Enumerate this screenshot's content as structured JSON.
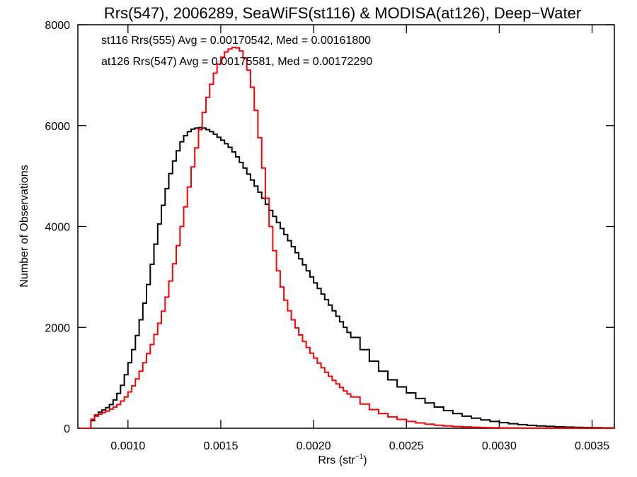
{
  "chart_data": {
    "type": "line",
    "style": "step-histogram",
    "title": "Rrs(547), 2006289, SeaWiFS(st116) & MODISA(at126), Deep−Water",
    "xlabel_main": "Rrs (str",
    "xlabel_sup": "−1",
    "xlabel_close": ")",
    "ylabel": "Number of Observations",
    "xlim": [
      0.00073,
      0.00362
    ],
    "ylim": [
      0,
      8000
    ],
    "x_ticks": [
      {
        "value": 0.001,
        "label": "0.0010"
      },
      {
        "value": 0.0015,
        "label": "0.0015"
      },
      {
        "value": 0.002,
        "label": "0.0020"
      },
      {
        "value": 0.0025,
        "label": "0.0025"
      },
      {
        "value": 0.003,
        "label": "0.0030"
      },
      {
        "value": 0.0035,
        "label": "0.0035"
      }
    ],
    "y_ticks": [
      {
        "value": 0,
        "label": "0"
      },
      {
        "value": 2000,
        "label": "2000"
      },
      {
        "value": 4000,
        "label": "4000"
      },
      {
        "value": 6000,
        "label": "6000"
      },
      {
        "value": 8000,
        "label": "8000"
      }
    ],
    "grid": false,
    "legend": [
      {
        "text": "st116 Rrs(555) Avg = 0.00170542, Med = 0.00161800",
        "color": "#000000"
      },
      {
        "text": "at126 Rrs(547) Avg = 0.00175581, Med = 0.00172290",
        "color": "#ff0000"
      }
    ],
    "legend_position": "top-left",
    "series": [
      {
        "color": "#000000",
        "x": [
          0.00074,
          0.00078,
          0.0008,
          0.00082,
          0.00084,
          0.00086,
          0.00088,
          0.0009,
          0.00092,
          0.00094,
          0.00096,
          0.00098,
          0.001,
          0.00102,
          0.00104,
          0.00106,
          0.00108,
          0.0011,
          0.00112,
          0.00114,
          0.00116,
          0.00118,
          0.0012,
          0.00122,
          0.00124,
          0.00126,
          0.00128,
          0.0013,
          0.00132,
          0.00134,
          0.00136,
          0.00138,
          0.0014,
          0.00142,
          0.00144,
          0.00146,
          0.00148,
          0.0015,
          0.00152,
          0.00154,
          0.00156,
          0.00158,
          0.0016,
          0.00162,
          0.00164,
          0.00166,
          0.00168,
          0.0017,
          0.00172,
          0.00174,
          0.00176,
          0.00178,
          0.0018,
          0.00182,
          0.00184,
          0.00186,
          0.00188,
          0.0019,
          0.00192,
          0.00194,
          0.00196,
          0.00198,
          0.002,
          0.00202,
          0.00204,
          0.00206,
          0.00208,
          0.0021,
          0.00212,
          0.00214,
          0.00216,
          0.00218,
          0.0022,
          0.00225,
          0.0023,
          0.00235,
          0.0024,
          0.00245,
          0.0025,
          0.00255,
          0.0026,
          0.00265,
          0.0027,
          0.00275,
          0.0028,
          0.00285,
          0.0029,
          0.00295,
          0.003,
          0.00305,
          0.0031,
          0.00315,
          0.0032,
          0.00325,
          0.0033,
          0.00335,
          0.0034,
          0.00345,
          0.0035,
          0.00355,
          0.0036,
          0.00362
        ],
        "y": [
          0,
          0,
          150,
          260,
          320,
          360,
          410,
          470,
          560,
          690,
          850,
          1060,
          1300,
          1560,
          1840,
          2150,
          2480,
          2850,
          3250,
          3650,
          4050,
          4420,
          4750,
          5050,
          5300,
          5500,
          5680,
          5800,
          5880,
          5930,
          5950,
          5960,
          5950,
          5920,
          5880,
          5830,
          5770,
          5710,
          5640,
          5570,
          5480,
          5380,
          5270,
          5160,
          5040,
          4920,
          4800,
          4680,
          4560,
          4440,
          4320,
          4200,
          4080,
          3960,
          3840,
          3720,
          3600,
          3480,
          3360,
          3240,
          3120,
          3000,
          2880,
          2770,
          2660,
          2550,
          2440,
          2330,
          2220,
          2110,
          2000,
          1900,
          1800,
          1560,
          1330,
          1130,
          960,
          820,
          700,
          590,
          500,
          420,
          350,
          290,
          240,
          200,
          165,
          135,
          110,
          90,
          72,
          58,
          46,
          36,
          28,
          22,
          17,
          13,
          10,
          7,
          5,
          4
        ]
      },
      {
        "color": "#ff0000",
        "x": [
          0.00074,
          0.00078,
          0.0008,
          0.00082,
          0.00084,
          0.00086,
          0.00088,
          0.0009,
          0.00092,
          0.00094,
          0.00096,
          0.00098,
          0.001,
          0.00102,
          0.00104,
          0.00106,
          0.00108,
          0.0011,
          0.00112,
          0.00114,
          0.00116,
          0.00118,
          0.0012,
          0.00122,
          0.00124,
          0.00126,
          0.00128,
          0.0013,
          0.00132,
          0.00134,
          0.00136,
          0.00138,
          0.0014,
          0.00142,
          0.00144,
          0.00146,
          0.00148,
          0.0015,
          0.00152,
          0.00154,
          0.00156,
          0.00158,
          0.0016,
          0.00162,
          0.00164,
          0.00166,
          0.00168,
          0.0017,
          0.00172,
          0.00174,
          0.00176,
          0.00178,
          0.0018,
          0.00182,
          0.00184,
          0.00186,
          0.00188,
          0.0019,
          0.00192,
          0.00194,
          0.00196,
          0.00198,
          0.002,
          0.00202,
          0.00204,
          0.00206,
          0.00208,
          0.0021,
          0.00212,
          0.00214,
          0.00216,
          0.00218,
          0.0022,
          0.00225,
          0.0023,
          0.00235,
          0.0024,
          0.00245,
          0.0025,
          0.00255,
          0.0026,
          0.00265,
          0.0027,
          0.00275,
          0.0028,
          0.00285,
          0.0029,
          0.00295,
          0.003,
          0.00305,
          0.0031,
          0.00315,
          0.0032,
          0.00325,
          0.0033,
          0.00335,
          0.0034,
          0.00345,
          0.0035,
          0.00355,
          0.0036,
          0.00362
        ],
        "y": [
          0,
          0,
          180,
          240,
          280,
          310,
          340,
          380,
          420,
          470,
          540,
          620,
          720,
          840,
          980,
          1130,
          1300,
          1480,
          1660,
          1860,
          2080,
          2320,
          2600,
          2920,
          3260,
          3620,
          4000,
          4390,
          4780,
          5180,
          5560,
          5920,
          6260,
          6560,
          6820,
          7040,
          7220,
          7360,
          7460,
          7520,
          7550,
          7540,
          7480,
          7340,
          7100,
          6760,
          6300,
          5760,
          5160,
          4560,
          4000,
          3520,
          3120,
          2800,
          2540,
          2330,
          2150,
          1990,
          1850,
          1720,
          1600,
          1490,
          1390,
          1290,
          1200,
          1110,
          1030,
          950,
          880,
          810,
          740,
          680,
          620,
          480,
          370,
          290,
          225,
          175,
          135,
          105,
          80,
          60,
          45,
          34,
          26,
          19,
          14,
          10,
          7,
          5,
          4,
          3,
          2,
          2,
          1,
          1,
          1,
          0,
          0,
          0,
          0,
          0
        ]
      }
    ]
  }
}
